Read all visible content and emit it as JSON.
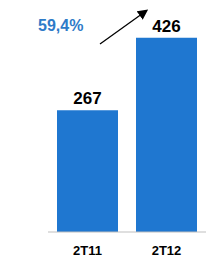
{
  "chart_data": {
    "type": "bar",
    "categories": [
      "2T11",
      "2T12"
    ],
    "values": [
      267,
      426
    ],
    "color": "#1f77d0",
    "ylim": [
      0,
      480
    ],
    "data_labels": true,
    "tick_labels": "x",
    "annotation": "59,4%"
  }
}
